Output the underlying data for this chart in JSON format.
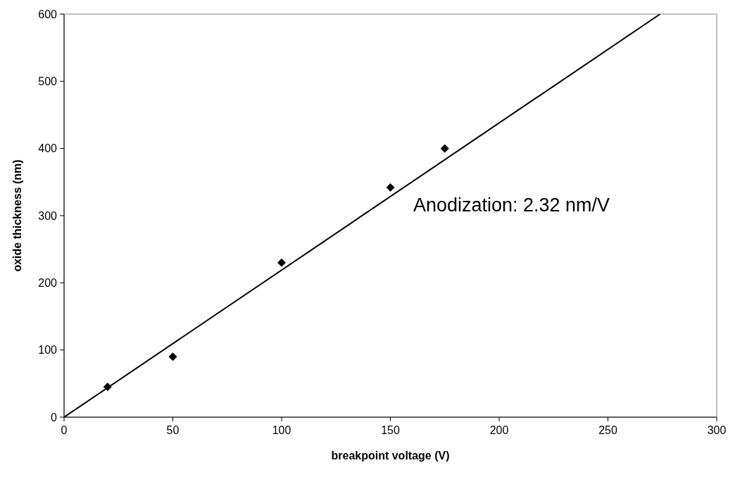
{
  "chart_data": {
    "type": "scatter",
    "xlabel": "breakpoint voltage (V)",
    "ylabel": "oxide thickness (nm)",
    "xlim": [
      0,
      300
    ],
    "ylim": [
      0,
      600
    ],
    "xticks": [
      0,
      50,
      100,
      150,
      200,
      250,
      300
    ],
    "yticks": [
      0,
      100,
      200,
      300,
      400,
      500,
      600
    ],
    "grid": false,
    "marker": "diamond",
    "annotations": [
      "Anodization: 2.32 nm/V"
    ],
    "series": [
      {
        "color": "#000000",
        "x": [
          20,
          50,
          100,
          150,
          175
        ],
        "values": [
          45,
          90,
          230,
          342,
          400
        ]
      },
      {
        "type": "line",
        "color": "#000000",
        "marker": "none",
        "line_style": "solid",
        "x": [
          0,
          274
        ],
        "values": [
          0,
          600
        ]
      }
    ]
  }
}
